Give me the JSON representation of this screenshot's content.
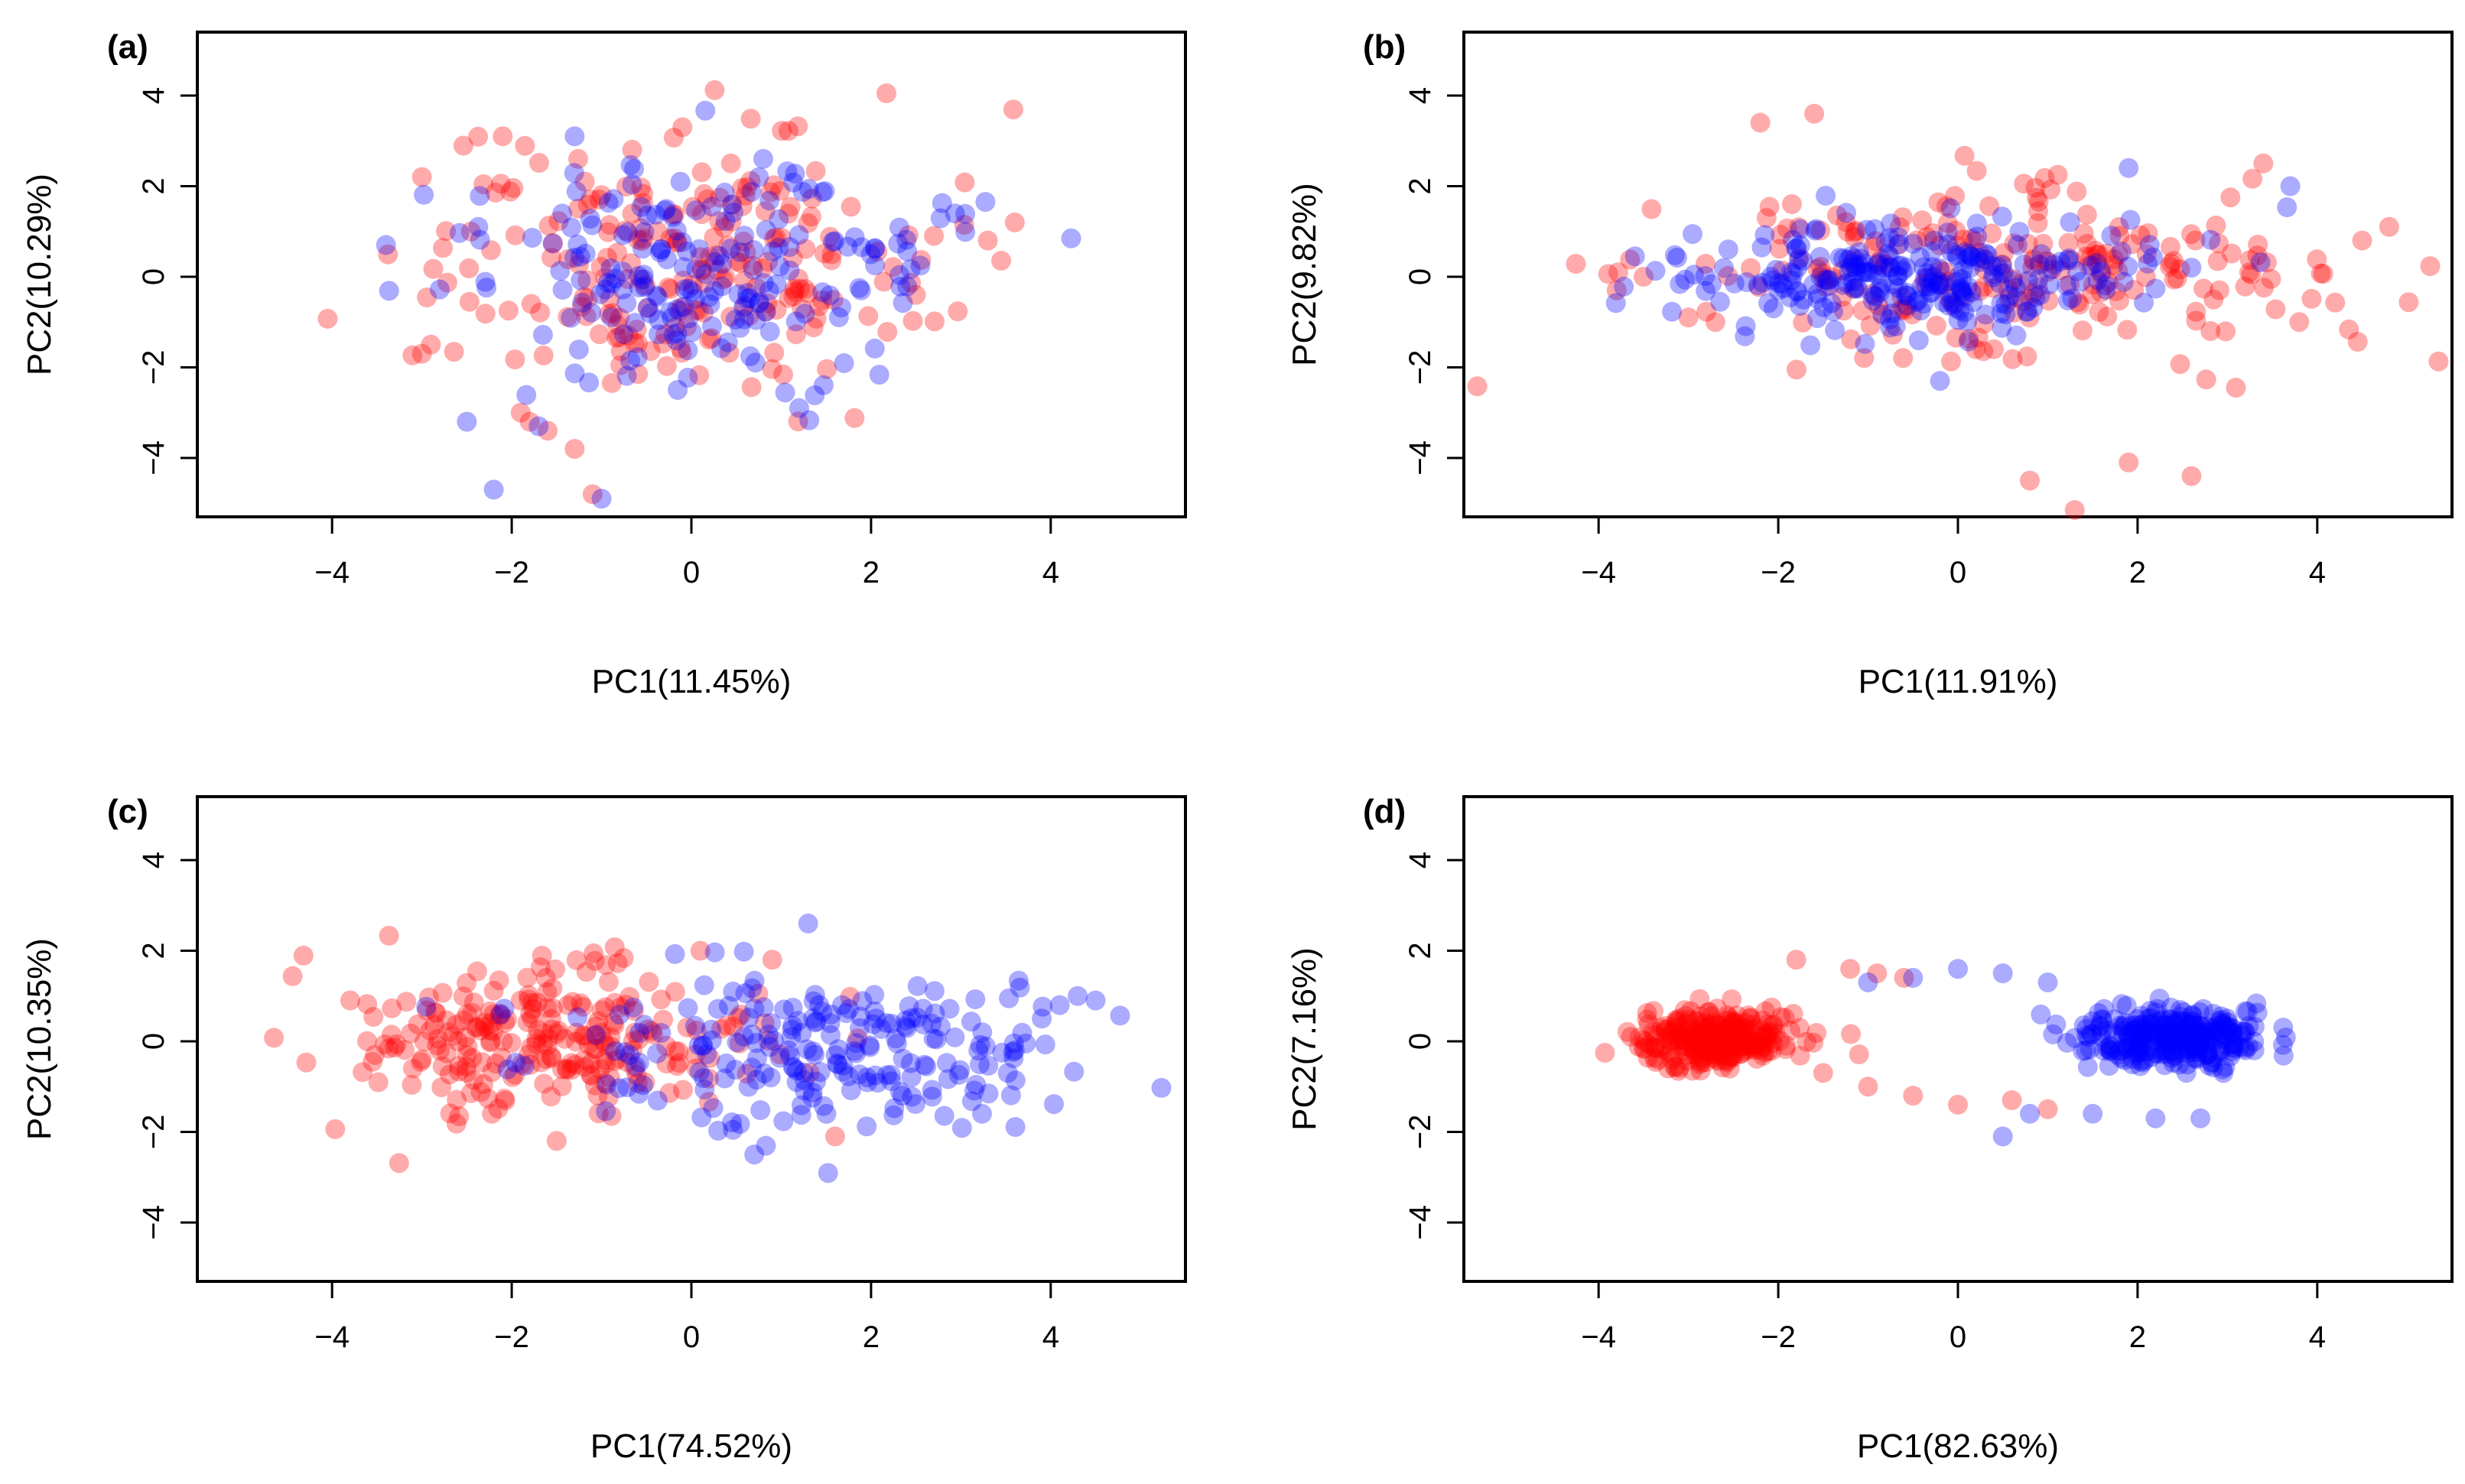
{
  "chart_data": [
    {
      "type": "scatter",
      "panel_label": "(a)",
      "xlabel": "PC1(11.45%)",
      "ylabel": "PC2(10.29%)",
      "xlim": [
        -5.5,
        5.5
      ],
      "ylim": [
        -5.3,
        5.4
      ],
      "xticks": [
        -4,
        -2,
        0,
        2,
        4
      ],
      "yticks": [
        -4,
        -2,
        0,
        2,
        4
      ],
      "grid": false,
      "series": [
        {
          "color": "#ff0000",
          "cx": -0.2,
          "cy": 0.3,
          "sx": 1.4,
          "sy": 1.4,
          "n": 220,
          "points": [
            [
              -1.8,
              -3.2
            ],
            [
              -1.6,
              -3.4
            ],
            [
              -1.9,
              -3.0
            ],
            [
              -1.3,
              -3.8
            ],
            [
              -3.0,
              -1.7
            ],
            [
              -2.9,
              -1.5
            ],
            [
              3.3,
              0.8
            ],
            [
              3.6,
              1.2
            ],
            [
              2.5,
              -0.4
            ],
            [
              2.7,
              0.9
            ],
            [
              -0.1,
              3.3
            ],
            [
              -2.1,
              3.1
            ],
            [
              -3.0,
              2.2
            ],
            [
              -1.1,
              -4.8
            ]
          ]
        },
        {
          "color": "#0000ff",
          "cx": 0.2,
          "cy": 0.1,
          "sx": 1.3,
          "sy": 1.2,
          "n": 200,
          "points": [
            [
              -1.0,
              -4.9
            ],
            [
              -2.2,
              -4.7
            ],
            [
              -2.5,
              -3.2
            ],
            [
              -3.4,
              0.7
            ],
            [
              -1.3,
              3.1
            ],
            [
              1.2,
              -2.9
            ],
            [
              0.8,
              2.6
            ],
            [
              -1.7,
              -3.3
            ]
          ]
        }
      ]
    },
    {
      "type": "scatter",
      "panel_label": "(b)",
      "xlabel": "PC1(11.91%)",
      "ylabel": "PC2(9.82%)",
      "xlim": [
        -5.5,
        5.5
      ],
      "ylim": [
        -5.3,
        5.4
      ],
      "xticks": [
        -4,
        -2,
        0,
        2,
        4
      ],
      "yticks": [
        -4,
        -2,
        0,
        2,
        4
      ],
      "grid": false,
      "series": [
        {
          "color": "#ff0000",
          "cx": 0.3,
          "cy": 0.0,
          "sx": 1.8,
          "sy": 0.9,
          "n": 220,
          "points": [
            [
              -3.8,
              -0.3
            ],
            [
              -3.5,
              0.0
            ],
            [
              -2.7,
              -1.0
            ],
            [
              -3.0,
              -0.9
            ],
            [
              1.8,
              0.9
            ],
            [
              2.1,
              0.5
            ],
            [
              4.8,
              1.1
            ],
            [
              4.5,
              0.8
            ],
            [
              3.8,
              -1.0
            ],
            [
              1.3,
              -5.3
            ],
            [
              0.8,
              -4.5
            ],
            [
              1.9,
              -4.1
            ],
            [
              2.6,
              -4.4
            ],
            [
              -1.6,
              3.6
            ],
            [
              -2.2,
              3.4
            ],
            [
              0.4,
              -1.6
            ],
            [
              0.2,
              -1.6
            ],
            [
              3.4,
              2.5
            ]
          ]
        },
        {
          "color": "#0000ff",
          "cx": -0.6,
          "cy": 0.0,
          "sx": 1.3,
          "sy": 0.55,
          "n": 260,
          "points": [
            [
              1.9,
              2.4
            ],
            [
              3.7,
              2.0
            ],
            [
              -0.2,
              -2.3
            ],
            [
              2.6,
              0.2
            ],
            [
              -2.0,
              -0.3
            ]
          ]
        }
      ]
    },
    {
      "type": "scatter",
      "panel_label": "(c)",
      "xlabel": "PC1(74.52%)",
      "ylabel": "PC2(10.35%)",
      "xlim": [
        -5.5,
        5.5
      ],
      "ylim": [
        -5.3,
        5.4
      ],
      "xticks": [
        -4,
        -2,
        0,
        2,
        4
      ],
      "yticks": [
        -4,
        -2,
        0,
        2,
        4
      ],
      "grid": false,
      "series": [
        {
          "color": "#ff0000",
          "cx": -1.6,
          "cy": 0.1,
          "sx": 1.1,
          "sy": 0.8,
          "n": 240,
          "points": [
            [
              -2.6,
              0.0
            ],
            [
              -2.8,
              -0.2
            ],
            [
              -2.4,
              0.3
            ],
            [
              -2.2,
              0.6
            ],
            [
              -3.1,
              -0.6
            ],
            [
              -3.0,
              -0.4
            ],
            [
              -1.9,
              0.9
            ],
            [
              -2.7,
              0.2
            ],
            [
              -2.5,
              -0.3
            ],
            [
              0.1,
              2.0
            ],
            [
              0.9,
              1.8
            ],
            [
              1.6,
              -2.1
            ],
            [
              -1.5,
              -2.2
            ]
          ]
        },
        {
          "color": "#0000ff",
          "cx": 1.6,
          "cy": -0.3,
          "sx": 1.5,
          "sy": 0.8,
          "n": 220,
          "points": [
            [
              4.3,
              1.0
            ],
            [
              4.1,
              0.8
            ],
            [
              4.5,
              0.9
            ],
            [
              3.9,
              0.5
            ],
            [
              1.3,
              2.6
            ],
            [
              0.7,
              -2.5
            ],
            [
              3.6,
              -0.2
            ]
          ]
        }
      ]
    },
    {
      "type": "scatter",
      "panel_label": "(d)",
      "xlabel": "PC1(82.63%)",
      "ylabel": "PC2(7.16%)",
      "xlim": [
        -5.5,
        5.5
      ],
      "ylim": [
        -5.3,
        5.4
      ],
      "xticks": [
        -4,
        -2,
        0,
        2,
        4
      ],
      "yticks": [
        -4,
        -2,
        0,
        2,
        4
      ],
      "grid": false,
      "series": [
        {
          "color": "#ff0000",
          "cx": -2.7,
          "cy": 0.05,
          "sx": 0.45,
          "sy": 0.3,
          "n": 320,
          "points": [
            [
              -1.8,
              1.8
            ],
            [
              -1.2,
              1.6
            ],
            [
              -0.9,
              1.5
            ],
            [
              -0.6,
              1.4
            ],
            [
              -1.5,
              -0.7
            ],
            [
              -1.0,
              -1.0
            ],
            [
              -0.5,
              -1.2
            ],
            [
              0.0,
              -1.4
            ],
            [
              0.6,
              -1.3
            ],
            [
              1.0,
              -1.5
            ],
            [
              -3.3,
              0.3
            ],
            [
              -3.1,
              0.5
            ]
          ]
        },
        {
          "color": "#0000ff",
          "cx": 2.4,
          "cy": 0.1,
          "sx": 0.5,
          "sy": 0.3,
          "n": 300,
          "points": [
            [
              3.2,
              -0.2
            ],
            [
              3.3,
              -0.2
            ],
            [
              0.0,
              1.6
            ],
            [
              0.5,
              1.5
            ],
            [
              1.0,
              1.3
            ],
            [
              0.8,
              -1.6
            ],
            [
              1.5,
              -1.6
            ],
            [
              2.2,
              -1.7
            ],
            [
              2.7,
              -1.7
            ],
            [
              0.5,
              -2.1
            ],
            [
              -1.0,
              1.3
            ],
            [
              -0.5,
              1.4
            ]
          ]
        }
      ]
    }
  ]
}
